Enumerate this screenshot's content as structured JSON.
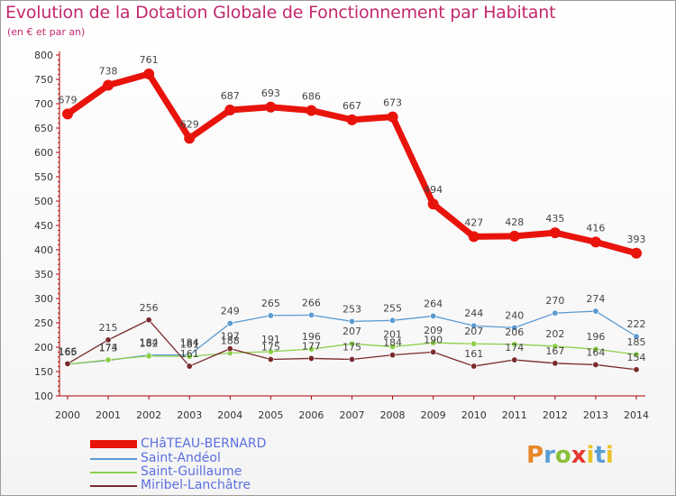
{
  "title": "Evolution de la Dotation Globale de Fonctionnement par Habitant",
  "subtitle": "(en € et par an)",
  "logo": {
    "text": "Proxiti",
    "letters": [
      "P",
      "r",
      "o",
      "x",
      "i",
      "t",
      "i"
    ]
  },
  "chart_data": {
    "type": "line",
    "title": "Evolution de la Dotation Globale de Fonctionnement par Habitant",
    "ylabel": "(en € et par an)",
    "xlabel": "",
    "categories": [
      "2000",
      "2001",
      "2002",
      "2003",
      "2004",
      "2005",
      "2006",
      "2007",
      "2008",
      "2009",
      "2010",
      "2011",
      "2012",
      "2013",
      "2014"
    ],
    "ylim": [
      100,
      800
    ],
    "yticks": [
      "100",
      "150",
      "200",
      "250",
      "300",
      "350",
      "400",
      "450",
      "500",
      "550",
      "600",
      "650",
      "700",
      "750",
      "800"
    ],
    "grid": false,
    "legend_position": "bottom-left",
    "series": [
      {
        "name": "CHâTEAU-BERNARD",
        "color": "#e8140c",
        "thick": true,
        "values": [
          679,
          738,
          761,
          629,
          687,
          693,
          686,
          667,
          673,
          494,
          427,
          428,
          435,
          416,
          393
        ],
        "labels": [
          "679",
          "738",
          "761",
          "629",
          "687",
          "693",
          "686",
          "667",
          "673",
          "494",
          "427",
          "428",
          "435",
          "416",
          "393"
        ]
      },
      {
        "name": "Saint-Andéol",
        "color": "#5b9ad1",
        "thick": false,
        "values": [
          165,
          173,
          184,
          184,
          249,
          265,
          266,
          253,
          255,
          264,
          244,
          240,
          270,
          274,
          222
        ],
        "labels": [
          "165",
          "173",
          "184",
          "184",
          "249",
          "265",
          "266",
          "253",
          "255",
          "264",
          "244",
          "240",
          "270",
          "274",
          "222"
        ]
      },
      {
        "name": "Saint-Guillaume",
        "color": "#8ccf4a",
        "thick": false,
        "values": [
          165,
          174,
          182,
          181,
          188,
          191,
          196,
          207,
          201,
          209,
          207,
          206,
          202,
          196,
          185
        ],
        "labels": [
          "165",
          "174",
          "182",
          "181",
          "188",
          "191",
          "196",
          "207",
          "201",
          "209",
          "207",
          "206",
          "202",
          "196",
          "185"
        ]
      },
      {
        "name": "Miribel-Lanchâtre",
        "color": "#7a2a2c",
        "thick": false,
        "values": [
          166,
          215,
          256,
          161,
          197,
          175,
          177,
          175,
          184,
          190,
          161,
          174,
          167,
          164,
          154
        ],
        "labels": [
          "166",
          "215",
          "256",
          "161",
          "197",
          "175",
          "177",
          "175",
          "184",
          "190",
          "161",
          "174",
          "167",
          "164",
          "154"
        ]
      }
    ]
  }
}
